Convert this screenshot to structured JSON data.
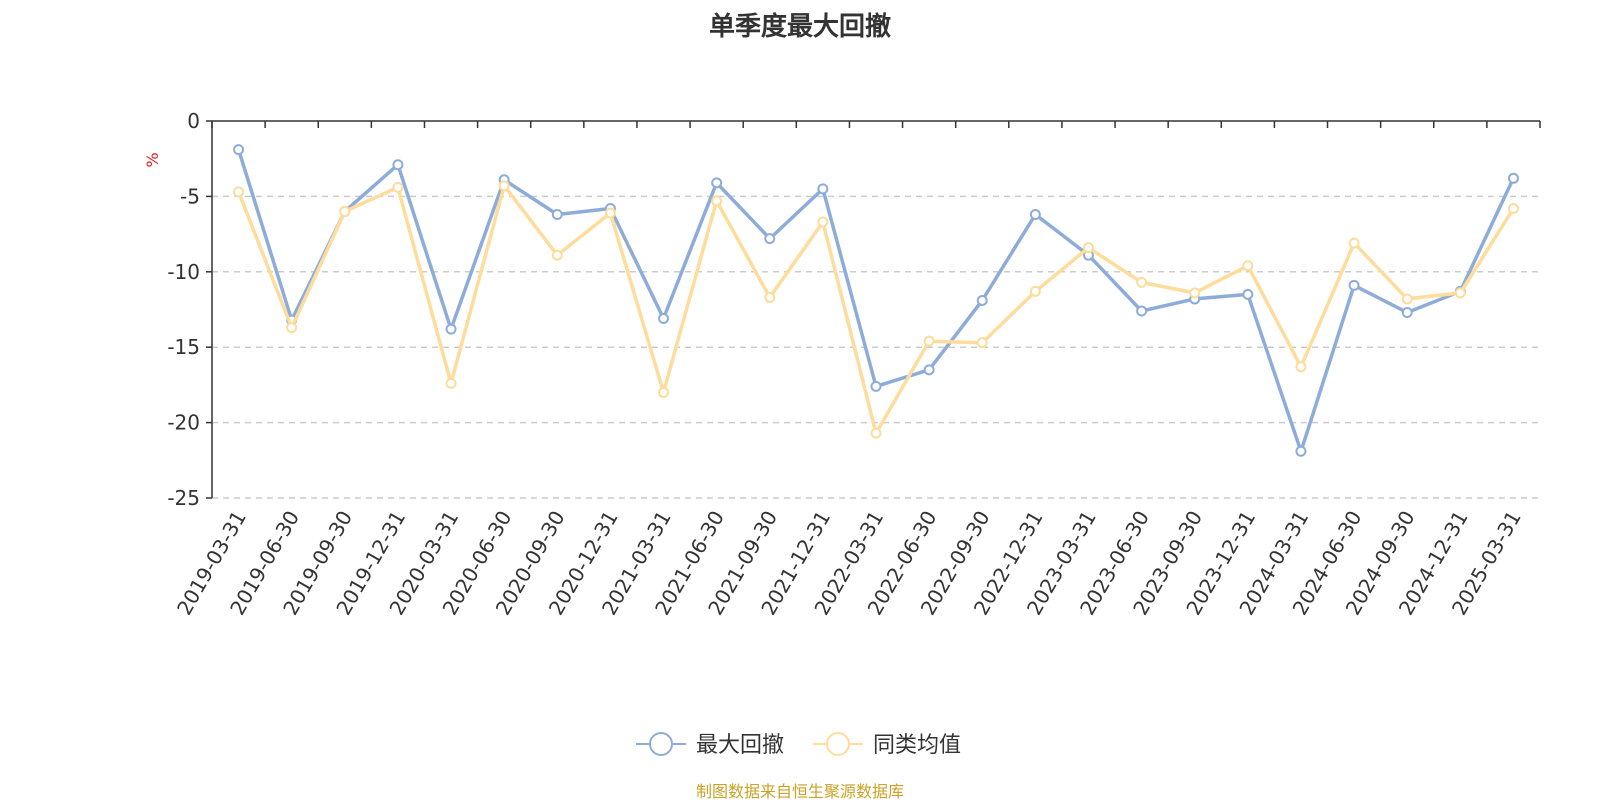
{
  "chart_data": {
    "type": "line",
    "title": "单季度最大回撤",
    "ylabel": "%",
    "ylim": [
      -25,
      0
    ],
    "yticks": [
      0,
      -5,
      -10,
      -15,
      -20,
      -25
    ],
    "grid": true,
    "legend_position": "bottom-center",
    "categories": [
      "2019-03-31",
      "2019-06-30",
      "2019-09-30",
      "2019-12-31",
      "2020-03-31",
      "2020-06-30",
      "2020-09-30",
      "2020-12-31",
      "2021-03-31",
      "2021-06-30",
      "2021-09-30",
      "2021-12-31",
      "2022-03-31",
      "2022-06-30",
      "2022-09-30",
      "2022-12-31",
      "2023-03-31",
      "2023-06-30",
      "2023-09-30",
      "2023-12-31",
      "2024-03-31",
      "2024-06-30",
      "2024-09-30",
      "2024-12-31",
      "2025-03-31"
    ],
    "series": [
      {
        "name": "最大回撤",
        "color": "#8eacd9",
        "values": [
          -1.9,
          -13.2,
          -6.0,
          -2.9,
          -13.8,
          -3.9,
          -6.2,
          -5.8,
          -13.1,
          -4.1,
          -7.8,
          -4.5,
          -17.6,
          -16.5,
          -11.9,
          -6.2,
          -8.9,
          -12.6,
          -11.8,
          -11.5,
          -21.9,
          -10.9,
          -12.7,
          -11.3,
          -3.8
        ]
      },
      {
        "name": "同类均值",
        "color": "#fddc9c",
        "values": [
          -4.7,
          -13.7,
          -6.0,
          -4.4,
          -17.4,
          -4.3,
          -8.9,
          -6.1,
          -18.0,
          -5.3,
          -11.7,
          -6.7,
          -20.7,
          -14.6,
          -14.7,
          -11.3,
          -8.4,
          -10.7,
          -11.4,
          -9.6,
          -16.3,
          -8.1,
          -11.8,
          -11.4,
          -5.8
        ]
      }
    ]
  },
  "footer": "制图数据来自恒生聚源数据库"
}
